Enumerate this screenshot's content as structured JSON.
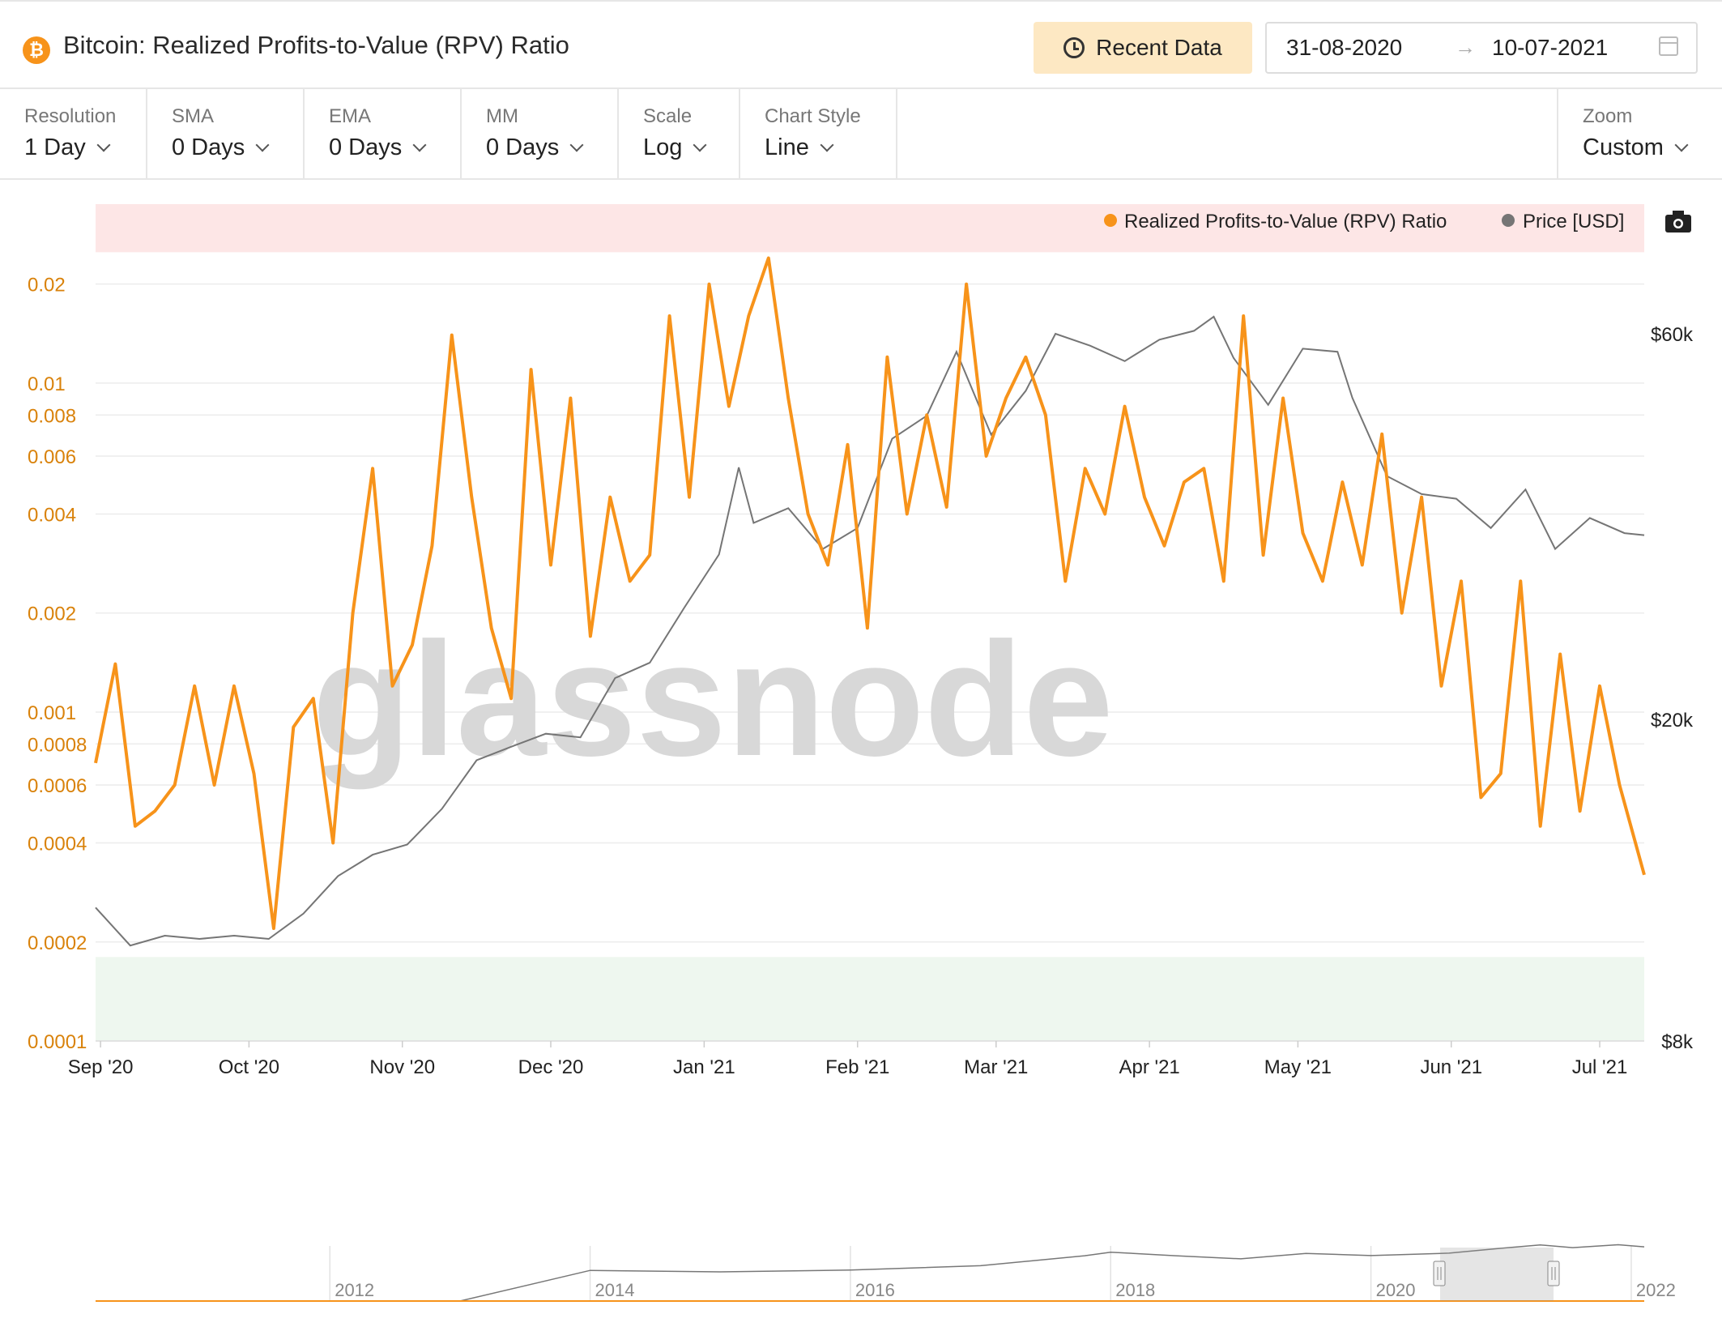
{
  "header": {
    "title": "Bitcoin: Realized Profits-to-Value (RPV) Ratio",
    "recent_data_label": "Recent Data",
    "date_from": "31-08-2020",
    "date_to": "10-07-2021"
  },
  "controls": [
    {
      "label": "Resolution",
      "value": "1 Day"
    },
    {
      "label": "SMA",
      "value": "0 Days"
    },
    {
      "label": "EMA",
      "value": "0 Days"
    },
    {
      "label": "MM",
      "value": "0 Days"
    },
    {
      "label": "Scale",
      "value": "Log"
    },
    {
      "label": "Chart Style",
      "value": "Line"
    }
  ],
  "zoom": {
    "label": "Zoom",
    "value": "Custom"
  },
  "watermark": "glassnode",
  "icons": {
    "logo": "bitcoin-logo-icon",
    "recent": "clock-icon",
    "calendar": "calendar-icon",
    "camera": "camera-icon"
  },
  "chart_data": {
    "type": "line",
    "scale": "log",
    "x_tick_labels": [
      "Sep '20",
      "Oct '20",
      "Nov '20",
      "Dec '20",
      "Jan '21",
      "Feb '21",
      "Mar '21",
      "Apr '21",
      "May '21",
      "Jun '21",
      "Jul '21"
    ],
    "x_range": [
      "2020-08-31",
      "2021-07-10"
    ],
    "y_left": {
      "ticks": [
        0.0001,
        0.0002,
        0.0004,
        0.0006,
        0.0008,
        0.001,
        0.002,
        0.004,
        0.006,
        0.008,
        0.01,
        0.02
      ],
      "range": [
        0.0001,
        0.035
      ]
    },
    "y_right": {
      "tick_labels": [
        "$8k",
        "$20k",
        "$60k"
      ],
      "ticks": [
        8000,
        20000,
        60000
      ],
      "range": [
        8000,
        60000
      ]
    },
    "bands": [
      {
        "name": "high",
        "from": 0.025,
        "to": 0.04,
        "color": "#fde6e6"
      },
      {
        "name": "low",
        "from": 0.0001,
        "to": 0.00018,
        "color": "#eef7ef"
      }
    ],
    "series": [
      {
        "name": "Realized Profits-to-Value (RPV) Ratio",
        "axis": "left",
        "color": "#f7931a",
        "x": [
          "2020-08-31",
          "2020-09-04",
          "2020-09-08",
          "2020-09-12",
          "2020-09-16",
          "2020-09-20",
          "2020-09-24",
          "2020-09-28",
          "2020-10-02",
          "2020-10-06",
          "2020-10-10",
          "2020-10-14",
          "2020-10-18",
          "2020-10-22",
          "2020-10-26",
          "2020-10-30",
          "2020-11-03",
          "2020-11-07",
          "2020-11-11",
          "2020-11-15",
          "2020-11-19",
          "2020-11-23",
          "2020-11-27",
          "2020-12-01",
          "2020-12-05",
          "2020-12-09",
          "2020-12-13",
          "2020-12-17",
          "2020-12-21",
          "2020-12-25",
          "2020-12-29",
          "2021-01-02",
          "2021-01-06",
          "2021-01-10",
          "2021-01-14",
          "2021-01-18",
          "2021-01-22",
          "2021-01-26",
          "2021-01-30",
          "2021-02-03",
          "2021-02-07",
          "2021-02-11",
          "2021-02-15",
          "2021-02-19",
          "2021-02-23",
          "2021-02-27",
          "2021-03-03",
          "2021-03-07",
          "2021-03-11",
          "2021-03-15",
          "2021-03-19",
          "2021-03-23",
          "2021-03-27",
          "2021-03-31",
          "2021-04-04",
          "2021-04-08",
          "2021-04-12",
          "2021-04-16",
          "2021-04-20",
          "2021-04-24",
          "2021-04-28",
          "2021-05-02",
          "2021-05-06",
          "2021-05-10",
          "2021-05-14",
          "2021-05-18",
          "2021-05-22",
          "2021-05-26",
          "2021-05-30",
          "2021-06-03",
          "2021-06-07",
          "2021-06-11",
          "2021-06-15",
          "2021-06-19",
          "2021-06-23",
          "2021-06-27",
          "2021-07-01",
          "2021-07-05",
          "2021-07-10"
        ],
        "values": [
          0.0007,
          0.0014,
          0.00045,
          0.0005,
          0.0006,
          0.0012,
          0.0006,
          0.0012,
          0.00065,
          0.00022,
          0.0009,
          0.0011,
          0.0004,
          0.002,
          0.0055,
          0.0012,
          0.0016,
          0.0032,
          0.014,
          0.0045,
          0.0018,
          0.0011,
          0.011,
          0.0028,
          0.009,
          0.0017,
          0.0045,
          0.0025,
          0.003,
          0.016,
          0.0045,
          0.02,
          0.0085,
          0.016,
          0.024,
          0.009,
          0.004,
          0.0028,
          0.0065,
          0.0018,
          0.012,
          0.004,
          0.008,
          0.0042,
          0.02,
          0.006,
          0.009,
          0.012,
          0.008,
          0.0025,
          0.0055,
          0.004,
          0.0085,
          0.0045,
          0.0032,
          0.005,
          0.0055,
          0.0025,
          0.016,
          0.003,
          0.009,
          0.0035,
          0.0025,
          0.005,
          0.0028,
          0.007,
          0.002,
          0.0045,
          0.0012,
          0.0025,
          0.00055,
          0.00065,
          0.0025,
          0.00045,
          0.0015,
          0.0005,
          0.0012,
          0.0006,
          0.00032
        ]
      },
      {
        "name": "Price [USD]",
        "axis": "right",
        "color": "#757575",
        "x": [
          "2020-08-31",
          "2020-09-07",
          "2020-09-14",
          "2020-09-21",
          "2020-09-28",
          "2020-10-05",
          "2020-10-12",
          "2020-10-19",
          "2020-10-26",
          "2020-11-02",
          "2020-11-09",
          "2020-11-16",
          "2020-11-23",
          "2020-11-30",
          "2020-12-07",
          "2020-12-14",
          "2020-12-21",
          "2020-12-28",
          "2021-01-04",
          "2021-01-08",
          "2021-01-11",
          "2021-01-18",
          "2021-01-25",
          "2021-02-01",
          "2021-02-08",
          "2021-02-15",
          "2021-02-21",
          "2021-02-28",
          "2021-03-07",
          "2021-03-13",
          "2021-03-20",
          "2021-03-27",
          "2021-04-03",
          "2021-04-10",
          "2021-04-14",
          "2021-04-18",
          "2021-04-25",
          "2021-05-02",
          "2021-05-09",
          "2021-05-12",
          "2021-05-19",
          "2021-05-26",
          "2021-06-02",
          "2021-06-09",
          "2021-06-16",
          "2021-06-22",
          "2021-06-29",
          "2021-07-06",
          "2021-07-10"
        ],
        "values": [
          11700,
          10500,
          10800,
          10700,
          10800,
          10700,
          11500,
          12800,
          13600,
          14000,
          15500,
          17800,
          18500,
          19200,
          19000,
          22500,
          23500,
          27500,
          32000,
          41000,
          35000,
          36500,
          32500,
          34500,
          44500,
          47500,
          57000,
          45000,
          51000,
          60000,
          58000,
          55500,
          59000,
          60500,
          63000,
          56000,
          49000,
          57500,
          57000,
          50000,
          40000,
          38000,
          37500,
          34500,
          38500,
          32500,
          35500,
          34000,
          33800
        ]
      }
    ],
    "legend": {
      "position": "top-right"
    },
    "navigator": {
      "tick_labels": [
        "2012",
        "2014",
        "2016",
        "2018",
        "2020",
        "2022"
      ]
    }
  }
}
